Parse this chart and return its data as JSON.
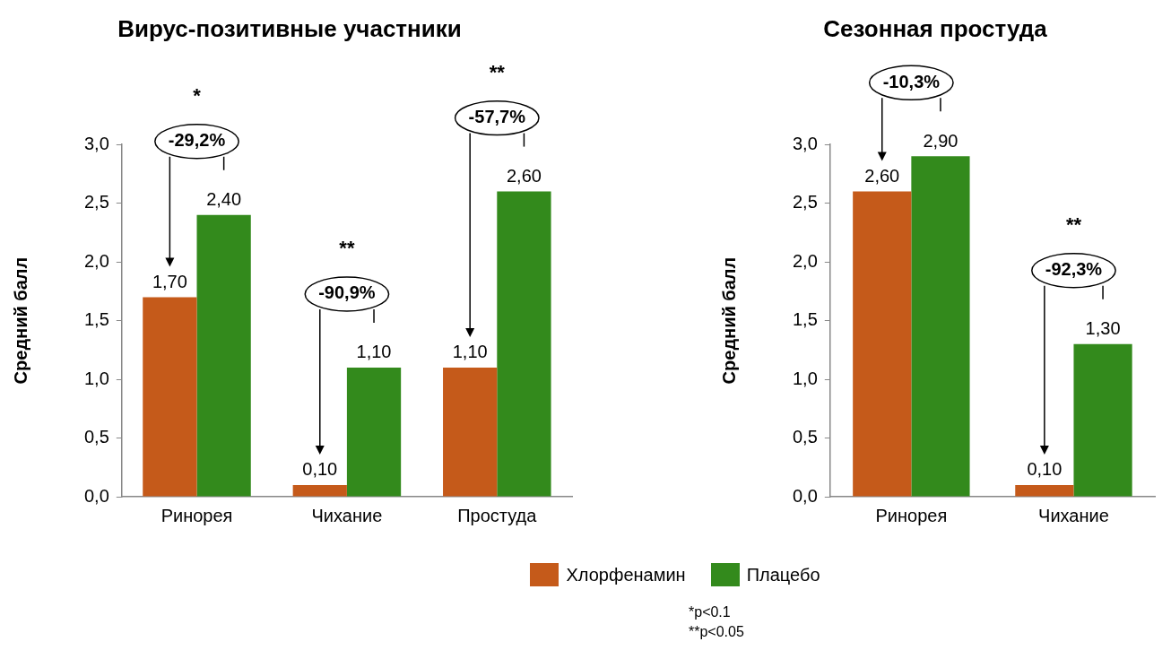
{
  "chart_data": [
    {
      "type": "bar",
      "title": "Вирус-позитивные участники",
      "ylabel": "Средний балл",
      "categories": [
        "Ринорея",
        "Чихание",
        "Простуда"
      ],
      "series": [
        {
          "color": "#c55a1a",
          "values": [
            1.7,
            0.1,
            1.1
          ],
          "value_labels": [
            "1,70",
            "0,10",
            "1,10"
          ]
        },
        {
          "color": "#338a1c",
          "values": [
            2.4,
            1.1,
            2.6
          ],
          "value_labels": [
            "2,40",
            "1,10",
            "2,60"
          ]
        }
      ],
      "ylim": [
        0,
        3
      ],
      "yticks": [
        {
          "value": 0,
          "label": "0,0"
        },
        {
          "value": 0.5,
          "label": "0,5"
        },
        {
          "value": 1,
          "label": "1,0"
        },
        {
          "value": 1.5,
          "label": "1,5"
        },
        {
          "value": 2,
          "label": "2,0"
        },
        {
          "value": 2.5,
          "label": "2,5"
        },
        {
          "value": 3,
          "label": "3,0"
        }
      ],
      "grid": false,
      "annotations": [
        "*\n-29,2%",
        "**\n-90,9%",
        "**\n-57,7%"
      ]
    },
    {
      "type": "bar",
      "title": "Сезонная простуда",
      "ylabel": "Средний балл",
      "categories": [
        "Ринорея",
        "Чихание"
      ],
      "series": [
        {
          "name": "Хлорфенамин",
          "color": "#c55a1a",
          "values": [
            2.6,
            0.1
          ],
          "value_labels": [
            "2,60",
            "0,10"
          ]
        },
        {
          "name": "Плацебо",
          "color": "#338a1c",
          "values": [
            2.9,
            1.3
          ],
          "value_labels": [
            "2,90",
            "1,30"
          ]
        }
      ],
      "ylim": [
        0,
        3
      ],
      "yticks": [
        {
          "value": 0,
          "label": "0,0"
        },
        {
          "value": 0.5,
          "label": "0,5"
        },
        {
          "value": 1,
          "label": "1,0"
        },
        {
          "value": 1.5,
          "label": "1,5"
        },
        {
          "value": 2,
          "label": "2,0"
        },
        {
          "value": 2.5,
          "label": "2,5"
        },
        {
          "value": 3,
          "label": "3,0"
        }
      ],
      "grid": false,
      "legend": "bottom",
      "annotations": [
        "-10,3%",
        "**\n-92,3%",
        "*p<0.1",
        "**p<0.05"
      ]
    }
  ]
}
